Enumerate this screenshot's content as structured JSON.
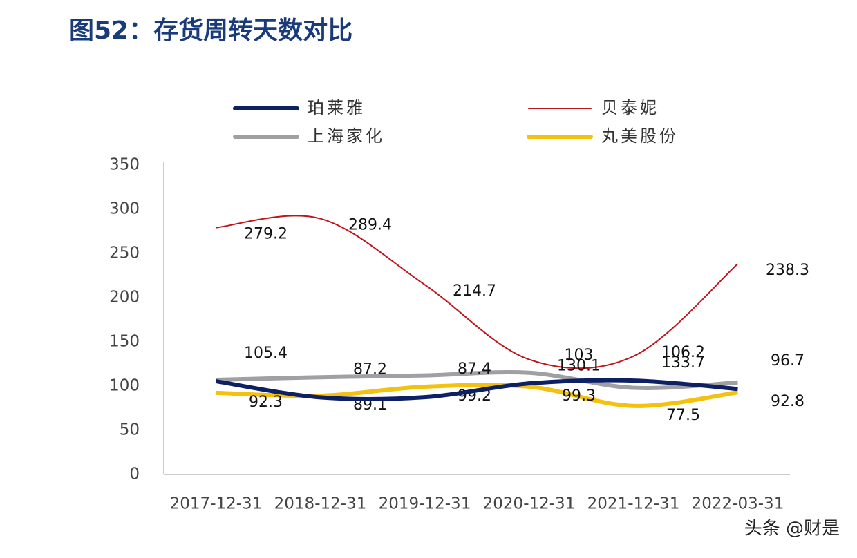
{
  "chart_data": {
    "type": "line",
    "title": "图52：存货周转天数对比",
    "categories": [
      "2017-12-31",
      "2018-12-31",
      "2019-12-31",
      "2020-12-31",
      "2021-12-31",
      "2022-03-31"
    ],
    "series": [
      {
        "name": "珀莱雅",
        "color": "#0d2063",
        "width": 6,
        "values": [
          105.4,
          87.2,
          87.4,
          103.0,
          106.2,
          96.7
        ]
      },
      {
        "name": "贝泰妮",
        "color": "#c0141c",
        "width": 2,
        "values": [
          279.2,
          289.4,
          214.7,
          130.1,
          133.7,
          238.3
        ]
      },
      {
        "name": "上海家化",
        "color": "#a0a0a4",
        "width": 6,
        "values": [
          107,
          110,
          112,
          115,
          98,
          104
        ]
      },
      {
        "name": "丸美股份",
        "color": "#f4c10e",
        "width": 6,
        "values": [
          92.3,
          89.1,
          99.2,
          99.3,
          77.5,
          92.8
        ]
      }
    ],
    "ylim": [
      0,
      350
    ],
    "yticks": [
      0,
      50,
      100,
      150,
      200,
      250,
      300,
      350
    ],
    "grid": false,
    "watermark": "头条 @财是"
  }
}
